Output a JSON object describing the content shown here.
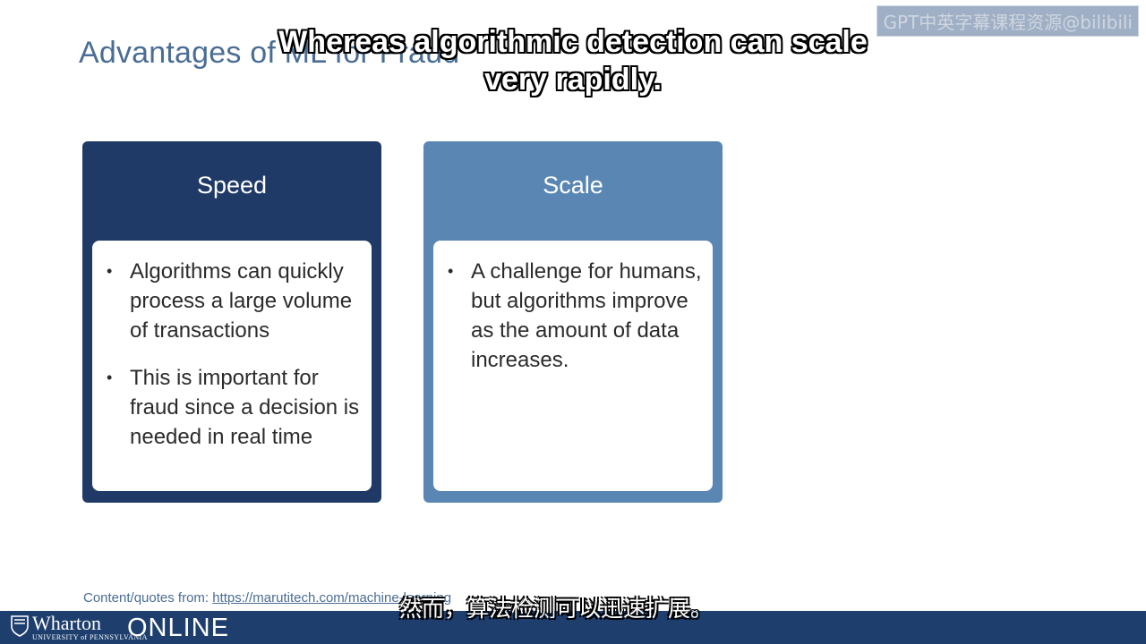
{
  "slide": {
    "title": "Advantages of ML for Fraud",
    "watermark": "GPT中英字幕课程资源@bilibili",
    "caption_en": "Whereas algorithmic detection can scale very rapidly.",
    "caption_zh": "然而，算法检测可以迅速扩展。",
    "cards": [
      {
        "title": "Speed",
        "bullets": [
          "Algorithms can quickly process a large volume of transactions",
          "This is important for fraud since a decision is needed in real time"
        ]
      },
      {
        "title": "Scale",
        "bullets": [
          "A challenge for humans, but algorithms improve as the amount of data increases."
        ]
      }
    ],
    "footer": {
      "label": "Content/quotes from:",
      "link": "https://marutitech.com/machine-learning"
    },
    "brand": {
      "name": "Wharton",
      "university": "UNIVERSITY of PENNSYLVANIA",
      "online": "ONLINE"
    }
  },
  "colors": {
    "title": "#4a6d95",
    "speed_card": "#1f3a66",
    "scale_card": "#5a86b3",
    "bottom_bar": "#1e3f6e"
  },
  "icons": [
    "bullet-dot",
    "penn-shield-icon"
  ]
}
